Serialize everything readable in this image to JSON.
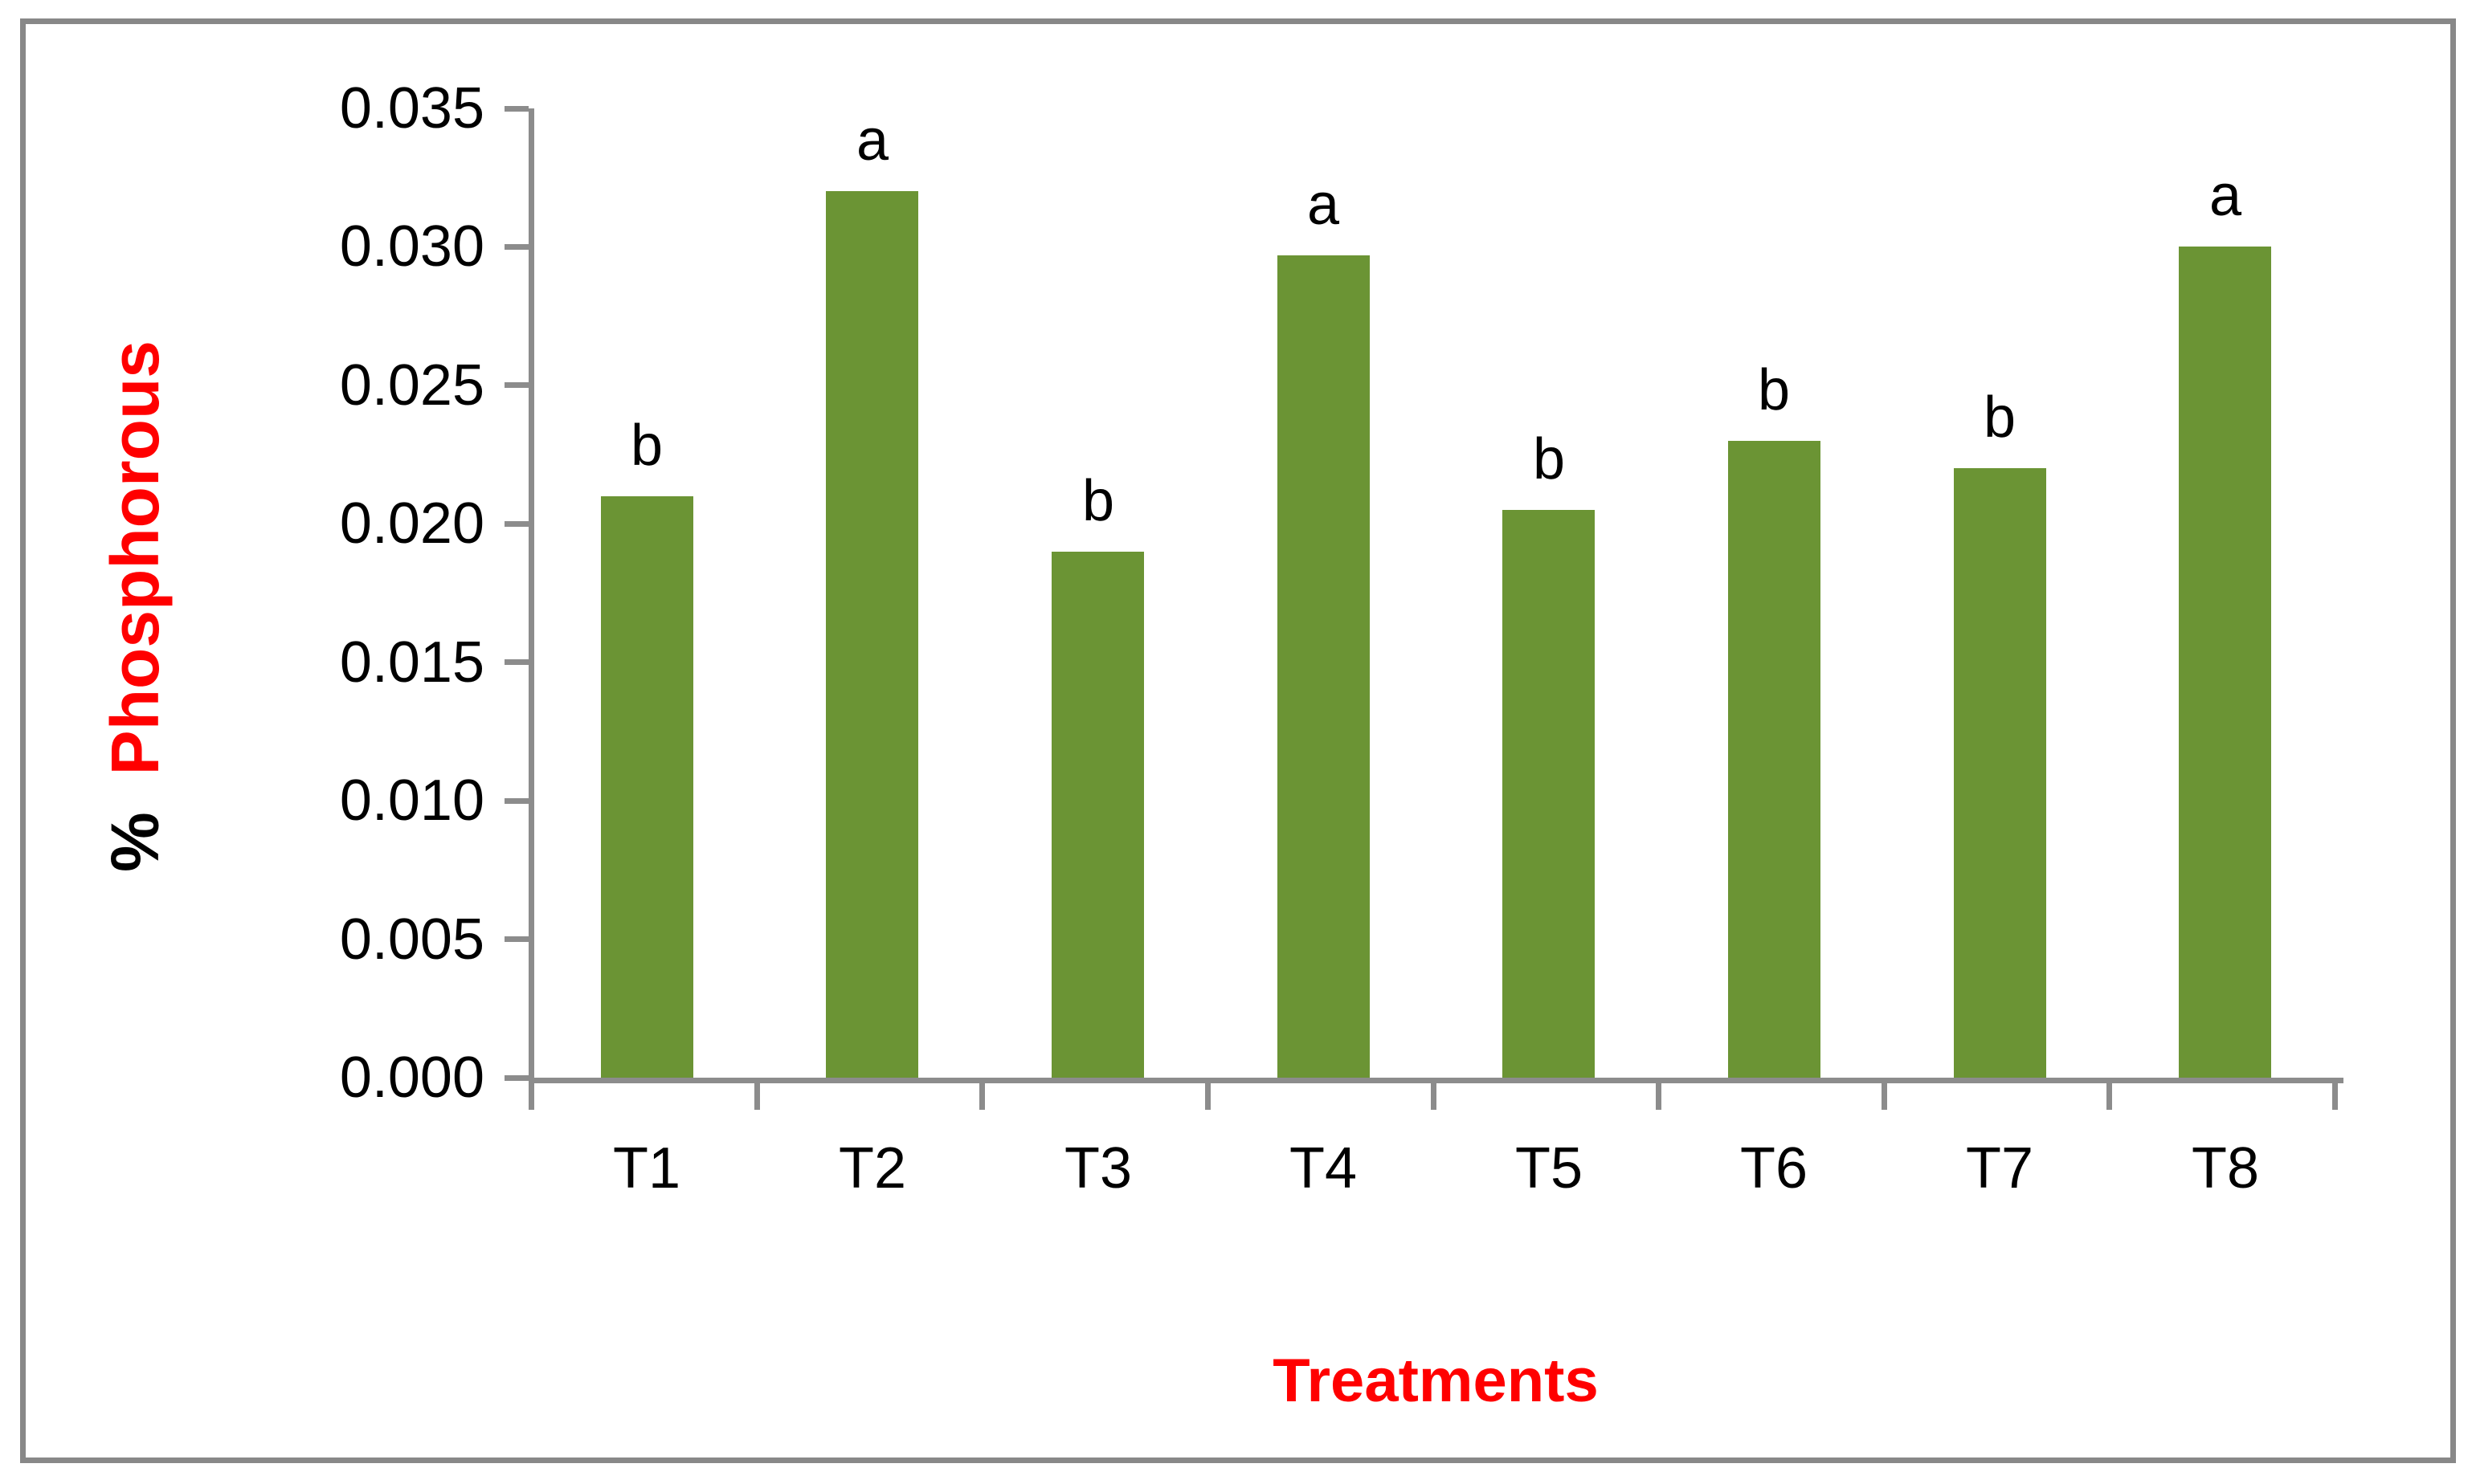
{
  "figure": {
    "background": "#FFFFFF",
    "border_color": "#888888"
  },
  "chart_data": {
    "type": "bar",
    "title": "",
    "categories": [
      "T1",
      "T2",
      "T3",
      "T4",
      "T5",
      "T6",
      "T7",
      "T8"
    ],
    "values": [
      0.021,
      0.032,
      0.019,
      0.0297,
      0.0205,
      0.023,
      0.022,
      0.03
    ],
    "bar_letters": [
      "b",
      "a",
      "b",
      "a",
      "b",
      "b",
      "b",
      "a"
    ],
    "xlabel": "Treatments",
    "ylabel": "% Phosphorous",
    "ylabel_prefix": "%",
    "ylabel_word": "Phosphorous",
    "ylim": [
      0,
      0.035
    ],
    "ytick_values": [
      0.0,
      0.005,
      0.01,
      0.015,
      0.02,
      0.025,
      0.03,
      0.035
    ],
    "ytick_labels": [
      "0.000",
      "0.005",
      "0.010",
      "0.015",
      "0.020",
      "0.025",
      "0.030",
      "0.035"
    ],
    "grid": false,
    "legend": false,
    "bar_color": "#6B9434",
    "axis_color": "#8C8C8C",
    "xlabel_color": "#FF0000",
    "ylabel_word_color": "#FF0000",
    "tick_label_color": "#000000"
  }
}
